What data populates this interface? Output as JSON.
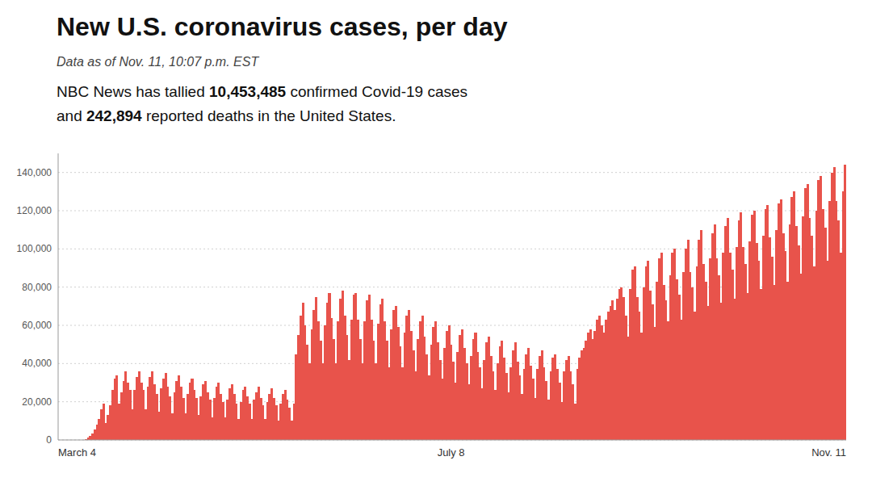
{
  "chart_data": {
    "type": "bar",
    "title": "New U.S. coronavirus cases, per day",
    "subtitle": "Data as of Nov. 11, 10:07 p.m. EST",
    "annotations": [
      [
        "NBC News has tallied ",
        "10,453,485",
        " confirmed Covid-19 cases"
      ],
      [
        "and ",
        "242,894",
        " reported deaths in the United States."
      ]
    ],
    "color": "#e8534b",
    "grid": true,
    "ylim": [
      0,
      150000
    ],
    "yticks": [
      0,
      {
        "value": 20000,
        "label": "20,000"
      },
      {
        "value": 40000,
        "label": "40,000"
      },
      {
        "value": 60000,
        "label": "60,000"
      },
      {
        "value": 80000,
        "label": "80,000"
      },
      {
        "value": 100000,
        "label": "100,000"
      },
      {
        "value": 120000,
        "label": "120,000"
      },
      {
        "value": 140000,
        "label": "140,000"
      }
    ],
    "categories": [
      "March 4",
      null,
      null,
      null,
      null,
      null,
      null,
      null,
      null,
      null,
      null,
      null,
      null,
      null,
      null,
      null,
      null,
      null,
      null,
      null,
      null,
      null,
      null,
      null,
      null,
      null,
      null,
      null,
      null,
      null,
      null,
      null,
      null,
      null,
      null,
      null,
      null,
      null,
      null,
      null,
      null,
      null,
      null,
      null,
      null,
      null,
      null,
      null,
      null,
      null,
      null,
      null,
      null,
      null,
      null,
      null,
      null,
      null,
      null,
      null,
      null,
      null,
      null,
      null,
      null,
      null,
      null,
      null,
      null,
      null,
      null,
      null,
      null,
      null,
      null,
      null,
      null,
      null,
      null,
      null,
      null,
      null,
      null,
      null,
      null,
      null,
      null,
      null,
      null,
      null,
      null,
      null,
      null,
      null,
      null,
      null,
      null,
      null,
      null,
      null,
      null,
      null,
      null,
      null,
      null,
      null,
      null,
      null,
      null,
      null,
      null,
      null,
      null,
      null,
      null,
      null,
      null,
      null,
      null,
      null,
      null,
      null,
      null,
      null,
      null,
      null,
      null,
      null,
      null,
      null,
      null,
      null,
      null,
      null,
      null,
      null,
      null,
      null,
      null,
      null,
      null,
      null,
      null,
      null,
      null,
      null,
      null,
      null,
      null,
      null,
      null,
      null,
      null,
      null,
      null,
      null,
      null,
      null,
      null,
      null,
      null,
      null,
      null,
      null,
      null,
      null,
      null,
      null,
      null,
      null,
      null,
      null,
      null,
      null,
      null,
      null,
      null,
      "July 8",
      null,
      null,
      null,
      null,
      null,
      null,
      null,
      null,
      null,
      null,
      null,
      null,
      null,
      null,
      null,
      null,
      null,
      null,
      null,
      null,
      null,
      null,
      null,
      null,
      null,
      null,
      null,
      null,
      null,
      null,
      null,
      null,
      null,
      null,
      null,
      null,
      null,
      null,
      null,
      null,
      null,
      null,
      null,
      null,
      null,
      null,
      null,
      null,
      null,
      null,
      null,
      null,
      null,
      null,
      null,
      null,
      null,
      null,
      null,
      null,
      null,
      null,
      null,
      null,
      null,
      null,
      null,
      null,
      null,
      null,
      null,
      null,
      null,
      null,
      null,
      null,
      null,
      null,
      null,
      null,
      null,
      null,
      null,
      null,
      null,
      null,
      null,
      null,
      null,
      null,
      null,
      null,
      null,
      null,
      null,
      null,
      null,
      null,
      null,
      null,
      null,
      null,
      null,
      null,
      null,
      null,
      null,
      null,
      null,
      null,
      null,
      null,
      null,
      null,
      null,
      null,
      null,
      null,
      null,
      null,
      null,
      null,
      null,
      null,
      null,
      null,
      null,
      null,
      null,
      null,
      null,
      null,
      null,
      null,
      null,
      null,
      null,
      null,
      null,
      null,
      null,
      null,
      null,
      null,
      null,
      null,
      null,
      null,
      null,
      null,
      null,
      null,
      null,
      null,
      null,
      null,
      null,
      null,
      null,
      null,
      null,
      null,
      null,
      null,
      null,
      null,
      null,
      null,
      null,
      null,
      null,
      null,
      null,
      null,
      null,
      null,
      null,
      "Nov. 11"
    ],
    "values": [
      1,
      2,
      3,
      5,
      7,
      10,
      15,
      20,
      30,
      50,
      80,
      200,
      500,
      1100,
      2000,
      3500,
      5500,
      8000,
      11000,
      16000,
      19000,
      9000,
      13000,
      18000,
      26000,
      32000,
      34000,
      19000,
      25000,
      31000,
      36000,
      30000,
      26000,
      16000,
      26000,
      33000,
      36000,
      30000,
      26000,
      16000,
      28000,
      33000,
      36000,
      29000,
      24000,
      15000,
      27000,
      32000,
      35000,
      28000,
      23000,
      14000,
      25000,
      31000,
      34000,
      28000,
      22000,
      14000,
      24000,
      30000,
      32000,
      26000,
      22000,
      13000,
      23000,
      29000,
      31000,
      25000,
      21000,
      12000,
      22000,
      28000,
      30000,
      24000,
      20000,
      12000,
      21000,
      27000,
      29000,
      24000,
      19000,
      11000,
      20000,
      26000,
      28000,
      23000,
      19000,
      11000,
      21000,
      25000,
      28000,
      22000,
      18000,
      11000,
      20000,
      24000,
      27000,
      22000,
      18000,
      10000,
      19000,
      24000,
      26000,
      21000,
      17000,
      10000,
      19000,
      45000,
      55000,
      65000,
      72000,
      60000,
      50000,
      40000,
      58000,
      68000,
      75000,
      62000,
      52000,
      40000,
      60000,
      72000,
      77000,
      64000,
      53000,
      40000,
      62000,
      74000,
      78000,
      65000,
      55000,
      42000,
      63000,
      76000,
      77000,
      63000,
      53000,
      40000,
      62000,
      73000,
      76000,
      63000,
      52000,
      40000,
      61000,
      71000,
      74000,
      62000,
      52000,
      38000,
      58000,
      68000,
      70000,
      59000,
      49000,
      38000,
      56000,
      65000,
      68000,
      57000,
      47000,
      36000,
      53000,
      62000,
      65000,
      54000,
      45000,
      34000,
      50000,
      59000,
      62000,
      51000,
      42000,
      32000,
      48000,
      57000,
      60000,
      50000,
      41000,
      30000,
      46000,
      55000,
      58000,
      48000,
      40000,
      29000,
      44000,
      53000,
      56000,
      46000,
      38000,
      27000,
      42000,
      51000,
      54000,
      44000,
      36000,
      26000,
      40000,
      49000,
      52000,
      43000,
      35000,
      25000,
      38000,
      47000,
      51000,
      41000,
      34000,
      24000,
      37000,
      45000,
      48000,
      39000,
      32000,
      22000,
      37000,
      44000,
      47000,
      38000,
      31000,
      21000,
      36000,
      43000,
      45000,
      37000,
      30000,
      20000,
      36000,
      42000,
      44000,
      36000,
      29000,
      19000,
      37000,
      43000,
      47000,
      48000,
      52000,
      56000,
      58000,
      53000,
      57000,
      63000,
      65000,
      60000,
      56000,
      63000,
      67000,
      70000,
      73000,
      68000,
      74000,
      79000,
      80000,
      75000,
      65000,
      54000,
      79000,
      89000,
      91000,
      75000,
      67000,
      56000,
      80000,
      91000,
      94000,
      78000,
      71000,
      59000,
      83000,
      95000,
      98000,
      81000,
      73000,
      62000,
      86000,
      98000,
      100000,
      84000,
      76000,
      63000,
      88000,
      100000,
      105000,
      88000,
      80000,
      67000,
      91000,
      105000,
      110000,
      92000,
      83000,
      70000,
      95000,
      108000,
      113000,
      95000,
      86000,
      72000,
      98000,
      112000,
      116000,
      98000,
      89000,
      74000,
      101000,
      115000,
      119000,
      101000,
      92000,
      77000,
      104000,
      118000,
      120000,
      103000,
      94000,
      79000,
      107000,
      121000,
      123000,
      106000,
      96000,
      81000,
      110000,
      124000,
      126000,
      108000,
      99000,
      83000,
      113000,
      127000,
      130000,
      112000,
      102000,
      87000,
      117000,
      132000,
      134000,
      116000,
      107000,
      91000,
      120000,
      136000,
      138000,
      121000,
      111000,
      94000,
      125000,
      140000,
      143000,
      125000,
      115000,
      98000,
      130000,
      144000
    ]
  }
}
